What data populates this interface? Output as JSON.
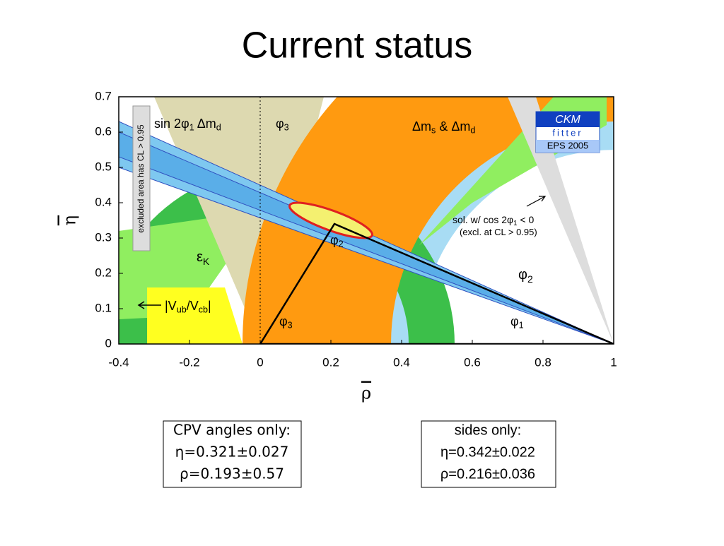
{
  "title": "Current  status",
  "chart_data": {
    "type": "region-plot",
    "xlim": [
      -0.4,
      1
    ],
    "ylim": [
      0,
      0.7
    ],
    "xticks": [
      -0.4,
      -0.2,
      0,
      0.2,
      0.4,
      0.6,
      0.8,
      1
    ],
    "yticks": [
      0,
      0.1,
      0.2,
      0.3,
      0.4,
      0.5,
      0.6,
      0.7
    ],
    "x_label": "ρ",
    "y_label": "η",
    "side_note": "excluded area has CL > 0.95",
    "logo": [
      "CKM",
      "fitter",
      "EPS 2005"
    ],
    "annotations": [
      {
        "parts": [
          [
            "sin 2φ",
            "1"
          ],
          [
            "  Δm",
            "d"
          ]
        ]
      },
      {
        "parts": [
          [
            "φ",
            "3"
          ]
        ]
      },
      {
        "parts": [
          [
            "Δm",
            "s"
          ],
          [
            " & Δm",
            "d"
          ]
        ]
      },
      {
        "parts": [
          [
            "ε",
            "K"
          ]
        ]
      },
      {
        "parts": [
          [
            "φ",
            "2"
          ]
        ]
      },
      {
        "parts": [
          [
            "φ",
            "2"
          ]
        ]
      },
      {
        "parts": [
          [
            "φ",
            "3"
          ]
        ]
      },
      {
        "parts": [
          [
            "φ",
            "1"
          ]
        ]
      },
      {
        "parts": [
          [
            "|V",
            "ub"
          ],
          [
            "/V",
            "cb"
          ],
          [
            "|"
          ]
        ]
      },
      {
        "parts": [
          [
            "sol. w/ cos 2φ",
            "1"
          ],
          [
            " < 0"
          ]
        ]
      },
      {
        "parts": [
          [
            "(excl. at CL > 0.95)"
          ]
        ]
      }
    ]
  },
  "boxes": [
    {
      "lines": [
        "CPV angles only:",
        "η=0.321±0.027",
        "ρ=0.193±0.57"
      ]
    },
    {
      "lines": [
        "sides only:",
        "η=0.342±0.022",
        "ρ=0.216±0.036"
      ]
    }
  ]
}
